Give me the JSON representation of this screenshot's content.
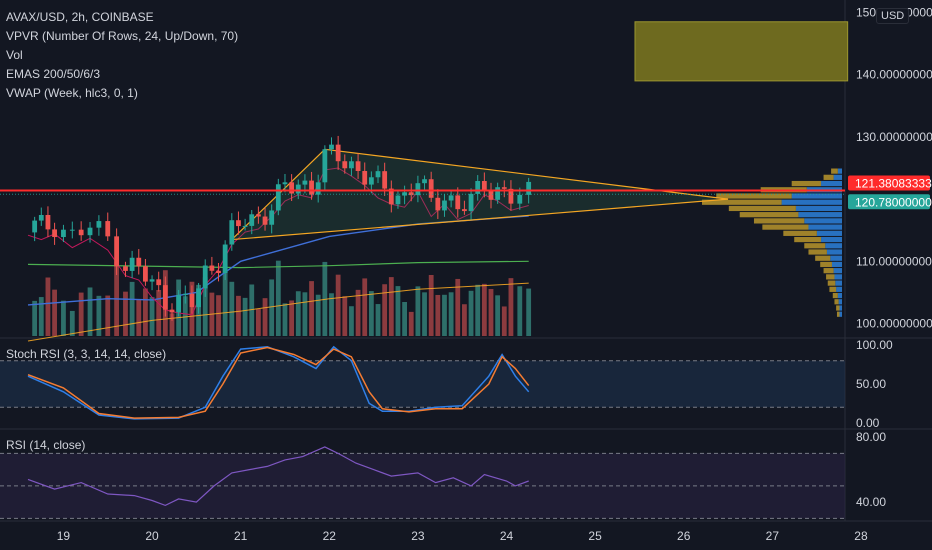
{
  "legend": {
    "symbol": "AVAX/USD, 2h, COINBASE",
    "indicators": [
      "VPVR (Number Of Rows, 24, Up/Down, 70)",
      "Vol",
      "EMAS 200/50/6/3",
      "VWAP (Week, hlc3, 0, 1)"
    ]
  },
  "currency_badge": "USD",
  "stoch_label": "Stoch RSI (3, 3, 14, 14, close)",
  "rsi_label": "RSI (14, close)",
  "colors": {
    "background": "#131722",
    "up": "#26a69a",
    "down": "#ef5350",
    "vol_up": "#2e6f6a",
    "vol_down": "#8c3b3f",
    "resistance": "#ff2b2b",
    "triangle": "#f5a623",
    "box": "#6e6a1f",
    "stoch_k": "#2f7fe8",
    "stoch_d": "#f57c32",
    "rsi": "#7e57c2"
  },
  "chart_data": [
    {
      "type": "candlestick",
      "pane": "price",
      "x_ticks": [
        "19",
        "20",
        "21",
        "22",
        "23",
        "24",
        "25",
        "26",
        "27",
        "28"
      ],
      "y_ticks": [
        "150.00000000",
        "140.00000000",
        "130.00000000",
        "110.00000000",
        "100.00000000"
      ],
      "ylim": [
        98,
        152
      ],
      "price_labels": [
        {
          "value": 121.38083333,
          "text": "121.38083333",
          "color": "#ff2b2b"
        },
        {
          "value": 120.78,
          "text": "120.78000000",
          "color": "#26a69a"
        }
      ],
      "close_path": [
        [
          18.6,
          116.0
        ],
        [
          18.75,
          115.3
        ],
        [
          18.9,
          116.2
        ],
        [
          19.1,
          114.0
        ],
        [
          19.3,
          115.5
        ],
        [
          19.5,
          113.6
        ],
        [
          19.7,
          109.5
        ],
        [
          19.85,
          108.8
        ],
        [
          20.0,
          106.0
        ],
        [
          20.15,
          104.0
        ],
        [
          20.3,
          103.5
        ],
        [
          20.45,
          103.2
        ],
        [
          20.6,
          108.0
        ],
        [
          20.75,
          110.5
        ],
        [
          20.9,
          114.5
        ],
        [
          21.05,
          116.5
        ],
        [
          21.2,
          117.0
        ],
        [
          21.35,
          119.0
        ],
        [
          21.5,
          121.5
        ],
        [
          21.65,
          122.5
        ],
        [
          21.8,
          122.0
        ],
        [
          21.95,
          126.5
        ],
        [
          22.1,
          126.8
        ],
        [
          22.25,
          125.5
        ],
        [
          22.4,
          124.0
        ],
        [
          22.55,
          122.0
        ],
        [
          22.7,
          121.0
        ],
        [
          22.85,
          120.5
        ],
        [
          23.0,
          123.0
        ],
        [
          23.15,
          119.0
        ],
        [
          23.3,
          121.0
        ],
        [
          23.45,
          118.5
        ],
        [
          23.6,
          119.5
        ],
        [
          23.75,
          122.5
        ],
        [
          23.9,
          121.5
        ],
        [
          24.05,
          120.0
        ],
        [
          24.25,
          120.78
        ]
      ],
      "resistance": 121.38083333,
      "triangle": {
        "upper": [
          [
            21.95,
            128.0
          ],
          [
            26.5,
            120.0
          ]
        ],
        "lower": [
          [
            20.9,
            113.5
          ],
          [
            26.5,
            120.0
          ]
        ]
      },
      "target_box": {
        "x_range": [
          25.45,
          27.85
        ],
        "y_range": [
          139.0,
          148.5
        ]
      },
      "ema_200": [
        [
          18.6,
          109.5
        ],
        [
          21.0,
          109.0
        ],
        [
          22.0,
          109.3
        ],
        [
          23.0,
          109.8
        ],
        [
          24.25,
          110.0
        ]
      ],
      "ema_50": [
        [
          18.6,
          103.0
        ],
        [
          19.5,
          104.0
        ],
        [
          20.0,
          103.8
        ],
        [
          20.5,
          105.0
        ],
        [
          21.0,
          110.0
        ],
        [
          22.0,
          114.0
        ],
        [
          23.0,
          116.0
        ],
        [
          24.25,
          117.3
        ]
      ],
      "vwap": [
        [
          18.6,
          97.2
        ],
        [
          20.0,
          100.5
        ],
        [
          21.0,
          102.0
        ],
        [
          22.0,
          104.0
        ],
        [
          23.0,
          105.5
        ],
        [
          24.25,
          106.5
        ]
      ]
    },
    {
      "type": "horizontal_bar",
      "pane": "volume_profile",
      "rows_price_bands": [
        [
          124,
          125
        ],
        [
          123,
          124
        ],
        [
          122,
          123
        ],
        [
          121,
          122
        ],
        [
          120,
          121
        ],
        [
          119,
          120
        ],
        [
          118,
          119
        ],
        [
          117,
          118
        ],
        [
          116,
          117
        ],
        [
          115,
          116
        ],
        [
          114,
          115
        ],
        [
          113,
          114
        ],
        [
          112,
          113
        ],
        [
          111,
          112
        ],
        [
          110,
          111
        ],
        [
          109,
          110
        ],
        [
          108,
          109
        ],
        [
          107,
          108
        ],
        [
          106,
          107
        ],
        [
          105,
          106
        ],
        [
          104,
          105
        ],
        [
          103,
          104
        ],
        [
          102,
          103
        ],
        [
          101,
          102
        ]
      ],
      "up_values": [
        8,
        12,
        35,
        55,
        90,
        95,
        80,
        70,
        60,
        55,
        40,
        32,
        25,
        22,
        18,
        14,
        12,
        10,
        9,
        8,
        6,
        5,
        4,
        3
      ],
      "down_values": [
        5,
        10,
        25,
        42,
        60,
        72,
        55,
        52,
        45,
        40,
        30,
        25,
        20,
        18,
        14,
        12,
        10,
        9,
        8,
        7,
        5,
        4,
        3,
        3
      ]
    },
    {
      "type": "line",
      "pane": "stoch_rsi",
      "y_ticks": [
        "100.00",
        "50.00",
        "0.00"
      ],
      "ylim": [
        -8,
        108
      ],
      "levels": [
        80,
        20
      ],
      "series": [
        {
          "key": "k",
          "points": [
            [
              18.6,
              60
            ],
            [
              19.0,
              40
            ],
            [
              19.4,
              10
            ],
            [
              19.8,
              5
            ],
            [
              20.3,
              6
            ],
            [
              20.6,
              20
            ],
            [
              20.8,
              60
            ],
            [
              21.0,
              95
            ],
            [
              21.3,
              98
            ],
            [
              21.6,
              85
            ],
            [
              21.85,
              70
            ],
            [
              22.05,
              98
            ],
            [
              22.25,
              80
            ],
            [
              22.45,
              25
            ],
            [
              22.6,
              15
            ],
            [
              22.9,
              15
            ],
            [
              23.2,
              20
            ],
            [
              23.5,
              22
            ],
            [
              23.8,
              60
            ],
            [
              23.95,
              88
            ],
            [
              24.1,
              60
            ],
            [
              24.25,
              40
            ]
          ]
        },
        {
          "key": "d",
          "points": [
            [
              18.6,
              62
            ],
            [
              19.0,
              45
            ],
            [
              19.4,
              12
            ],
            [
              19.8,
              6
            ],
            [
              20.3,
              7
            ],
            [
              20.6,
              15
            ],
            [
              20.8,
              50
            ],
            [
              21.0,
              90
            ],
            [
              21.3,
              97
            ],
            [
              21.6,
              88
            ],
            [
              21.85,
              75
            ],
            [
              22.05,
              95
            ],
            [
              22.25,
              85
            ],
            [
              22.45,
              40
            ],
            [
              22.6,
              18
            ],
            [
              22.9,
              14
            ],
            [
              23.2,
              18
            ],
            [
              23.5,
              18
            ],
            [
              23.8,
              50
            ],
            [
              23.95,
              85
            ],
            [
              24.1,
              70
            ],
            [
              24.25,
              48
            ]
          ]
        }
      ]
    },
    {
      "type": "line",
      "pane": "rsi",
      "y_ticks": [
        "80.00",
        "40.00"
      ],
      "ylim": [
        29,
        85
      ],
      "levels": [
        70,
        50,
        30
      ],
      "series": [
        {
          "key": "rsi",
          "points": [
            [
              18.6,
              54
            ],
            [
              18.9,
              48
            ],
            [
              19.2,
              52
            ],
            [
              19.5,
              45
            ],
            [
              19.8,
              44
            ],
            [
              20.0,
              41
            ],
            [
              20.15,
              38
            ],
            [
              20.3,
              42
            ],
            [
              20.5,
              40
            ],
            [
              20.7,
              50
            ],
            [
              20.9,
              58
            ],
            [
              21.1,
              60
            ],
            [
              21.3,
              62
            ],
            [
              21.5,
              66
            ],
            [
              21.7,
              68
            ],
            [
              21.95,
              74
            ],
            [
              22.1,
              70
            ],
            [
              22.3,
              64
            ],
            [
              22.5,
              60
            ],
            [
              22.7,
              56
            ],
            [
              23.0,
              58
            ],
            [
              23.2,
              52
            ],
            [
              23.4,
              55
            ],
            [
              23.6,
              50
            ],
            [
              23.75,
              57
            ],
            [
              24.0,
              53
            ],
            [
              24.1,
              50
            ],
            [
              24.25,
              53
            ]
          ]
        }
      ]
    }
  ]
}
